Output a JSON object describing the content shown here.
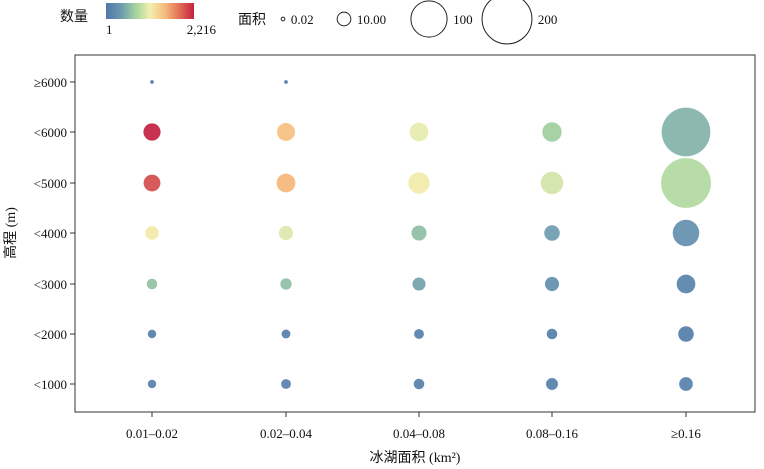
{
  "chart_data": {
    "type": "scatter",
    "title": "",
    "xlabel": "冰湖面积 (km²)",
    "ylabel": "高程 (m)",
    "categories": [
      "0.01–0.02",
      "0.02–0.04",
      "0.04–0.08",
      "0.08–0.16",
      "≥0.16"
    ],
    "y_categories": [
      "<1000",
      "<2000",
      "<3000",
      "<4000",
      "<5000",
      "<6000",
      "≥6000"
    ],
    "color_legend": {
      "title": "数量",
      "min_label": "1",
      "max_label": "2,216",
      "min": 1,
      "max": 2216
    },
    "size_legend": {
      "title": "面积",
      "labels": [
        "0.02",
        "10.00",
        "100",
        "200"
      ],
      "values": [
        0.02,
        10,
        100,
        200
      ]
    },
    "colormap": [
      "#4e78a8",
      "#6b9ab0",
      "#a5d49c",
      "#f2f0b0",
      "#f6bb7c",
      "#e06c55",
      "#c4213f"
    ],
    "points": [
      {
        "x": "0.01–0.02",
        "y": "≥6000",
        "count": 1,
        "area": 0.02
      },
      {
        "x": "0.02–0.04",
        "y": "≥6000",
        "count": 1,
        "area": 0.02
      },
      {
        "x": "0.01–0.02",
        "y": "<6000",
        "count": 2216,
        "area": 18
      },
      {
        "x": "0.02–0.04",
        "y": "<6000",
        "count": 1450,
        "area": 20
      },
      {
        "x": "0.04–0.08",
        "y": "<6000",
        "count": 1050,
        "area": 22
      },
      {
        "x": "0.08–0.16",
        "y": "<6000",
        "count": 700,
        "area": 24
      },
      {
        "x": "≥0.16",
        "y": "<6000",
        "count": 520,
        "area": 190
      },
      {
        "x": "0.01–0.02",
        "y": "<5000",
        "count": 2000,
        "area": 17
      },
      {
        "x": "0.02–0.04",
        "y": "<5000",
        "count": 1500,
        "area": 22
      },
      {
        "x": "0.04–0.08",
        "y": "<5000",
        "count": 1150,
        "area": 30
      },
      {
        "x": "0.08–0.16",
        "y": "<5000",
        "count": 950,
        "area": 34
      },
      {
        "x": "≥0.16",
        "y": "<5000",
        "count": 800,
        "area": 200
      },
      {
        "x": "0.01–0.02",
        "y": "<4000",
        "count": 1150,
        "area": 10
      },
      {
        "x": "0.02–0.04",
        "y": "<4000",
        "count": 1000,
        "area": 11
      },
      {
        "x": "0.04–0.08",
        "y": "<4000",
        "count": 600,
        "area": 13
      },
      {
        "x": "0.08–0.16",
        "y": "<4000",
        "count": 380,
        "area": 14
      },
      {
        "x": "≥0.16",
        "y": "<4000",
        "count": 250,
        "area": 50
      },
      {
        "x": "0.01–0.02",
        "y": "<3000",
        "count": 620,
        "area": 5
      },
      {
        "x": "0.02–0.04",
        "y": "<3000",
        "count": 600,
        "area": 6
      },
      {
        "x": "0.04–0.08",
        "y": "<3000",
        "count": 420,
        "area": 9
      },
      {
        "x": "0.08–0.16",
        "y": "<3000",
        "count": 250,
        "area": 11
      },
      {
        "x": "≥0.16",
        "y": "<3000",
        "count": 120,
        "area": 22
      },
      {
        "x": "0.01–0.02",
        "y": "<2000",
        "count": 80,
        "area": 2.5
      },
      {
        "x": "0.02–0.04",
        "y": "<2000",
        "count": 80,
        "area": 3
      },
      {
        "x": "0.04–0.08",
        "y": "<2000",
        "count": 80,
        "area": 4
      },
      {
        "x": "0.08–0.16",
        "y": "<2000",
        "count": 80,
        "area": 5
      },
      {
        "x": "≥0.16",
        "y": "<2000",
        "count": 60,
        "area": 14
      },
      {
        "x": "0.01–0.02",
        "y": "<1000",
        "count": 100,
        "area": 2.5
      },
      {
        "x": "0.02–0.04",
        "y": "<1000",
        "count": 100,
        "area": 4
      },
      {
        "x": "0.04–0.08",
        "y": "<1000",
        "count": 100,
        "area": 5
      },
      {
        "x": "0.08–0.16",
        "y": "<1000",
        "count": 100,
        "area": 7
      },
      {
        "x": "≥0.16",
        "y": "<1000",
        "count": 100,
        "area": 10
      }
    ]
  }
}
